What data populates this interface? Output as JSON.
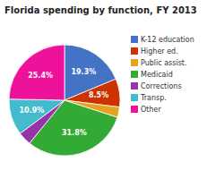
{
  "chart_data": {
    "type": "pie",
    "title": "Florida spending by function, FY 2013",
    "categories": [
      "K-12 education",
      "Higher ed.",
      "Public assist.",
      "Medicaid",
      "Corrections",
      "Transp.",
      "Other"
    ],
    "values": [
      19.3,
      8.5,
      3.1,
      31.8,
      4.0,
      10.9,
      25.4
    ],
    "value_labels": [
      "19.3%",
      "8.5%",
      null,
      "31.8%",
      null,
      "10.9%",
      "25.4%"
    ],
    "data_labels": true,
    "colors": [
      "#4472C4",
      "#CC3300",
      "#E8A020",
      "#33AA33",
      "#9933AA",
      "#44BBCC",
      "#EE1199"
    ],
    "legend": "upper right"
  }
}
